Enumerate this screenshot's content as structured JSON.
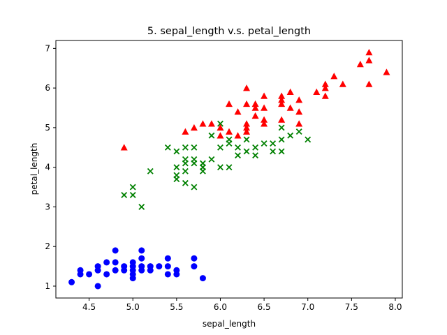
{
  "chart_data": {
    "type": "scatter",
    "title": "5. sepal_length v.s. petal_length",
    "xlabel": "sepal_length",
    "ylabel": "petal_length",
    "xlim": [
      4.12,
      8.08
    ],
    "ylim": [
      0.7,
      7.2
    ],
    "xticks": [
      "4.5",
      "5.0",
      "5.5",
      "6.0",
      "6.5",
      "7.0",
      "7.5",
      "8.0"
    ],
    "yticks": [
      "1",
      "2",
      "3",
      "4",
      "5",
      "6",
      "7"
    ],
    "grid": false,
    "legend": false,
    "series": [
      {
        "marker": "circle",
        "color": "#0000ff",
        "points": [
          [
            4.3,
            1.1
          ],
          [
            4.4,
            1.3
          ],
          [
            4.4,
            1.4
          ],
          [
            4.5,
            1.3
          ],
          [
            4.6,
            1.0
          ],
          [
            4.6,
            1.4
          ],
          [
            4.6,
            1.5
          ],
          [
            4.7,
            1.3
          ],
          [
            4.7,
            1.6
          ],
          [
            4.8,
            1.4
          ],
          [
            4.8,
            1.6
          ],
          [
            4.8,
            1.9
          ],
          [
            4.9,
            1.4
          ],
          [
            4.9,
            1.5
          ],
          [
            5.0,
            1.2
          ],
          [
            5.0,
            1.3
          ],
          [
            5.0,
            1.4
          ],
          [
            5.0,
            1.5
          ],
          [
            5.0,
            1.6
          ],
          [
            5.1,
            1.4
          ],
          [
            5.1,
            1.5
          ],
          [
            5.1,
            1.7
          ],
          [
            5.1,
            1.9
          ],
          [
            5.2,
            1.4
          ],
          [
            5.2,
            1.5
          ],
          [
            5.3,
            1.5
          ],
          [
            5.4,
            1.3
          ],
          [
            5.4,
            1.5
          ],
          [
            5.4,
            1.7
          ],
          [
            5.5,
            1.3
          ],
          [
            5.5,
            1.4
          ],
          [
            5.7,
            1.5
          ],
          [
            5.7,
            1.7
          ],
          [
            5.8,
            1.2
          ]
        ]
      },
      {
        "marker": "x",
        "color": "#008000",
        "points": [
          [
            4.9,
            3.3
          ],
          [
            5.0,
            3.3
          ],
          [
            5.0,
            3.5
          ],
          [
            5.1,
            3.0
          ],
          [
            5.2,
            3.9
          ],
          [
            5.4,
            4.5
          ],
          [
            5.5,
            3.7
          ],
          [
            5.5,
            3.8
          ],
          [
            5.5,
            4.0
          ],
          [
            5.5,
            4.4
          ],
          [
            5.6,
            3.6
          ],
          [
            5.6,
            3.9
          ],
          [
            5.6,
            4.1
          ],
          [
            5.6,
            4.2
          ],
          [
            5.6,
            4.5
          ],
          [
            5.7,
            3.5
          ],
          [
            5.7,
            4.1
          ],
          [
            5.7,
            4.2
          ],
          [
            5.7,
            4.5
          ],
          [
            5.8,
            3.9
          ],
          [
            5.8,
            4.0
          ],
          [
            5.8,
            4.1
          ],
          [
            5.9,
            4.2
          ],
          [
            5.9,
            4.8
          ],
          [
            6.0,
            4.0
          ],
          [
            6.0,
            4.5
          ],
          [
            6.0,
            5.1
          ],
          [
            6.1,
            4.0
          ],
          [
            6.1,
            4.6
          ],
          [
            6.1,
            4.7
          ],
          [
            6.2,
            4.3
          ],
          [
            6.2,
            4.5
          ],
          [
            6.3,
            4.4
          ],
          [
            6.3,
            4.7
          ],
          [
            6.4,
            4.3
          ],
          [
            6.4,
            4.5
          ],
          [
            6.5,
            4.6
          ],
          [
            6.6,
            4.4
          ],
          [
            6.6,
            4.6
          ],
          [
            6.7,
            4.4
          ],
          [
            6.7,
            4.7
          ],
          [
            6.7,
            5.0
          ],
          [
            6.8,
            4.8
          ],
          [
            6.9,
            4.9
          ],
          [
            7.0,
            4.7
          ]
        ]
      },
      {
        "marker": "triangle",
        "color": "#ff0000",
        "points": [
          [
            4.9,
            4.5
          ],
          [
            5.6,
            4.9
          ],
          [
            5.7,
            5.0
          ],
          [
            5.8,
            5.1
          ],
          [
            5.9,
            5.1
          ],
          [
            6.0,
            4.8
          ],
          [
            6.0,
            5.0
          ],
          [
            6.1,
            4.9
          ],
          [
            6.1,
            5.6
          ],
          [
            6.2,
            4.8
          ],
          [
            6.2,
            5.4
          ],
          [
            6.3,
            4.9
          ],
          [
            6.3,
            5.0
          ],
          [
            6.3,
            5.1
          ],
          [
            6.3,
            5.6
          ],
          [
            6.3,
            6.0
          ],
          [
            6.4,
            5.3
          ],
          [
            6.4,
            5.5
          ],
          [
            6.4,
            5.6
          ],
          [
            6.5,
            5.1
          ],
          [
            6.5,
            5.2
          ],
          [
            6.5,
            5.5
          ],
          [
            6.5,
            5.8
          ],
          [
            6.7,
            5.2
          ],
          [
            6.7,
            5.6
          ],
          [
            6.7,
            5.7
          ],
          [
            6.7,
            5.8
          ],
          [
            6.8,
            5.5
          ],
          [
            6.8,
            5.9
          ],
          [
            6.9,
            5.1
          ],
          [
            6.9,
            5.4
          ],
          [
            6.9,
            5.7
          ],
          [
            7.1,
            5.9
          ],
          [
            7.2,
            5.8
          ],
          [
            7.2,
            6.0
          ],
          [
            7.2,
            6.1
          ],
          [
            7.3,
            6.3
          ],
          [
            7.4,
            6.1
          ],
          [
            7.6,
            6.6
          ],
          [
            7.7,
            6.1
          ],
          [
            7.7,
            6.7
          ],
          [
            7.7,
            6.9
          ],
          [
            7.9,
            6.4
          ]
        ]
      }
    ]
  }
}
